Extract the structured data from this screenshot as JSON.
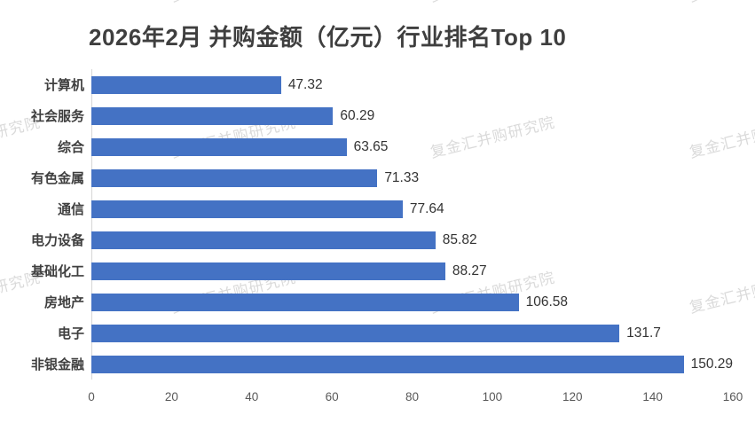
{
  "watermark": {
    "text": "复金汇并购研究院"
  },
  "chart_data": {
    "type": "bar",
    "orientation": "horizontal",
    "title": "2026年2月 并购金额（亿元）行业排名Top 10",
    "categories": [
      "计算机",
      "社会服务",
      "综合",
      "有色金属",
      "通信",
      "电力设备",
      "基础化工",
      "房地产",
      "电子",
      "非银金融"
    ],
    "values": [
      47.32,
      60.29,
      63.65,
      71.33,
      77.64,
      85.82,
      88.27,
      106.58,
      131.7,
      150.29
    ],
    "value_labels": [
      "47.32",
      "60.29",
      "63.65",
      "71.33",
      "77.64",
      "85.82",
      "88.27",
      "106.58",
      "131.7",
      "150.29"
    ],
    "xlabel": "",
    "ylabel": "",
    "xlim": [
      0,
      160
    ],
    "x_ticks": [
      "0",
      "20",
      "40",
      "60",
      "80",
      "100",
      "120",
      "140",
      "160"
    ],
    "bar_color": "#4472C4",
    "grid": false,
    "legend": null,
    "data_labels": true
  },
  "colors": {
    "bar": "#4472C4",
    "title_text": "#3f3f3f",
    "category_text": "#3f3f3f",
    "value_text": "#333333",
    "tick_text": "#595959",
    "axis_line": "#d6d6d6",
    "watermark_text": "#bdbdbd",
    "background": "#ffffff"
  }
}
